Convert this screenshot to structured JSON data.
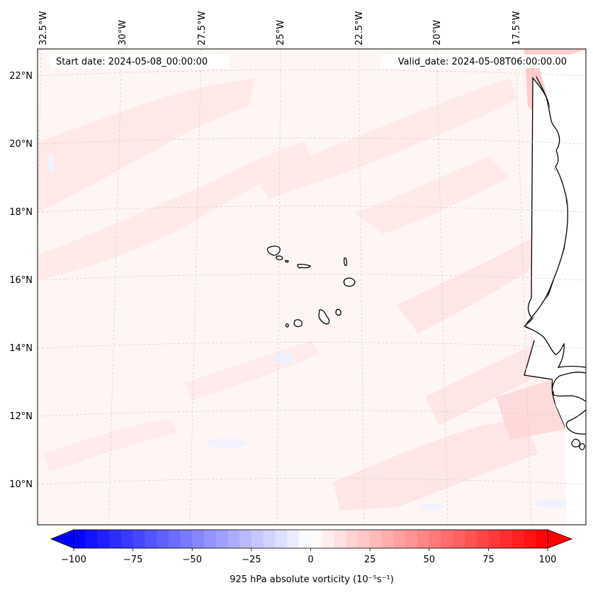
{
  "header": {
    "start_date": "Start date: 2024-05-08_00:00:00",
    "valid_date": "Valid_date: 2024-05-08T06:00:00.00"
  },
  "map": {
    "longitude_labels": [
      "32.5°W",
      "30°W",
      "27.5°W",
      "25°W",
      "22.5°W",
      "20°W",
      "17.5°W"
    ],
    "latitude_labels": [
      "22°N",
      "20°N",
      "18°N",
      "16°N",
      "14°N",
      "12°N",
      "10°N"
    ],
    "land_color": "#ffffff",
    "coastline_color": "#000000",
    "field_base_color": "#fff5f5",
    "gridline_color": "#cccccc"
  },
  "colorbar": {
    "label": "925 hPa absolute vorticity (10⁻⁵s⁻¹)",
    "ticks": [
      "−100",
      "−75",
      "−50",
      "−25",
      "0",
      "25",
      "50",
      "75",
      "100"
    ],
    "min": -100,
    "max": 100,
    "levels": 41,
    "extend": "both",
    "cmap": "bwr",
    "low_color": "#0000ff",
    "mid_color": "#ffffff",
    "high_color": "#ff0000"
  }
}
